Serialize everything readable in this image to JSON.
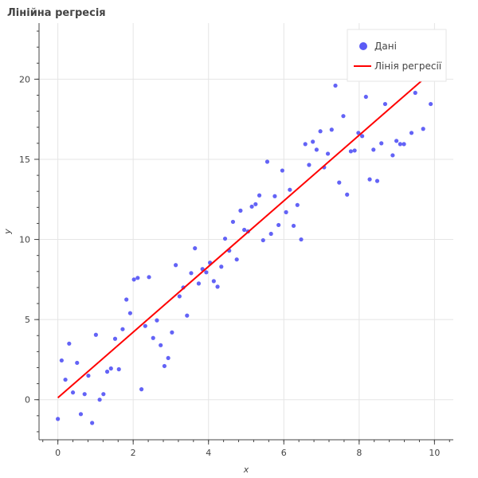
{
  "chart_data": {
    "type": "scatter",
    "title": "Лінійна регресія",
    "xlabel": "x",
    "ylabel": "y",
    "xlim": [
      -0.5,
      10.5
    ],
    "ylim": [
      -2.5,
      23.5
    ],
    "x_ticks": [
      0,
      2,
      4,
      6,
      8,
      10
    ],
    "y_ticks": [
      0,
      5,
      10,
      15,
      20
    ],
    "x_minor_step": 0.4,
    "y_minor_step": 1,
    "grid": true,
    "legend_position": "top-right",
    "series": [
      {
        "name": "Дані",
        "kind": "scatter",
        "color": "#5b5bf5",
        "points": [
          [
            0.0,
            -1.2
          ],
          [
            0.1,
            2.45
          ],
          [
            0.2,
            1.25
          ],
          [
            0.3,
            3.5
          ],
          [
            0.4,
            0.45
          ],
          [
            0.51,
            2.3
          ],
          [
            0.61,
            -0.9
          ],
          [
            0.71,
            0.35
          ],
          [
            0.81,
            1.5
          ],
          [
            0.91,
            -1.45
          ],
          [
            1.01,
            4.05
          ],
          [
            1.11,
            0.0
          ],
          [
            1.21,
            0.35
          ],
          [
            1.31,
            1.75
          ],
          [
            1.41,
            1.95
          ],
          [
            1.52,
            3.8
          ],
          [
            1.62,
            1.9
          ],
          [
            1.72,
            4.4
          ],
          [
            1.82,
            6.25
          ],
          [
            1.92,
            5.4
          ],
          [
            2.02,
            7.5
          ],
          [
            2.12,
            7.6
          ],
          [
            2.22,
            0.65
          ],
          [
            2.32,
            4.6
          ],
          [
            2.42,
            7.65
          ],
          [
            2.53,
            3.85
          ],
          [
            2.63,
            4.95
          ],
          [
            2.73,
            3.4
          ],
          [
            2.83,
            2.1
          ],
          [
            2.93,
            2.6
          ],
          [
            3.03,
            4.2
          ],
          [
            3.13,
            8.4
          ],
          [
            3.23,
            6.45
          ],
          [
            3.33,
            7.0
          ],
          [
            3.43,
            5.25
          ],
          [
            3.54,
            7.9
          ],
          [
            3.64,
            9.45
          ],
          [
            3.74,
            7.25
          ],
          [
            3.84,
            8.15
          ],
          [
            3.94,
            7.95
          ],
          [
            4.04,
            8.55
          ],
          [
            4.14,
            7.4
          ],
          [
            4.24,
            7.05
          ],
          [
            4.34,
            8.3
          ],
          [
            4.44,
            10.05
          ],
          [
            4.55,
            9.3
          ],
          [
            4.65,
            11.1
          ],
          [
            4.75,
            8.75
          ],
          [
            4.85,
            11.8
          ],
          [
            4.95,
            10.6
          ],
          [
            5.05,
            10.5
          ],
          [
            5.15,
            12.05
          ],
          [
            5.25,
            12.2
          ],
          [
            5.35,
            12.75
          ],
          [
            5.45,
            9.95
          ],
          [
            5.56,
            14.85
          ],
          [
            5.66,
            10.35
          ],
          [
            5.76,
            12.7
          ],
          [
            5.86,
            10.9
          ],
          [
            5.96,
            14.3
          ],
          [
            6.06,
            11.7
          ],
          [
            6.16,
            13.1
          ],
          [
            6.26,
            10.85
          ],
          [
            6.36,
            12.15
          ],
          [
            6.46,
            10.0
          ],
          [
            6.57,
            15.95
          ],
          [
            6.67,
            14.65
          ],
          [
            6.77,
            16.1
          ],
          [
            6.87,
            15.6
          ],
          [
            6.97,
            16.75
          ],
          [
            7.07,
            14.5
          ],
          [
            7.17,
            15.35
          ],
          [
            7.27,
            16.85
          ],
          [
            7.37,
            19.6
          ],
          [
            7.47,
            13.55
          ],
          [
            7.58,
            17.7
          ],
          [
            7.68,
            12.8
          ],
          [
            7.78,
            15.5
          ],
          [
            7.88,
            15.55
          ],
          [
            7.98,
            16.65
          ],
          [
            8.08,
            16.45
          ],
          [
            8.18,
            18.9
          ],
          [
            8.28,
            13.75
          ],
          [
            8.38,
            15.6
          ],
          [
            8.48,
            13.65
          ],
          [
            8.59,
            16.0
          ],
          [
            8.69,
            18.45
          ],
          [
            8.79,
            20.9
          ],
          [
            8.89,
            15.25
          ],
          [
            8.99,
            16.15
          ],
          [
            9.09,
            15.95
          ],
          [
            9.19,
            15.95
          ],
          [
            9.29,
            21.25
          ],
          [
            9.39,
            16.65
          ],
          [
            9.49,
            19.15
          ],
          [
            9.6,
            20.8
          ],
          [
            9.7,
            16.9
          ],
          [
            9.8,
            21.1
          ],
          [
            9.9,
            18.45
          ],
          [
            10.0,
            22.5
          ]
        ]
      },
      {
        "name": "Лінія регресії",
        "kind": "line",
        "color": "#ff0000",
        "points": [
          [
            0.0,
            0.12
          ],
          [
            10.0,
            20.6
          ]
        ]
      }
    ]
  }
}
